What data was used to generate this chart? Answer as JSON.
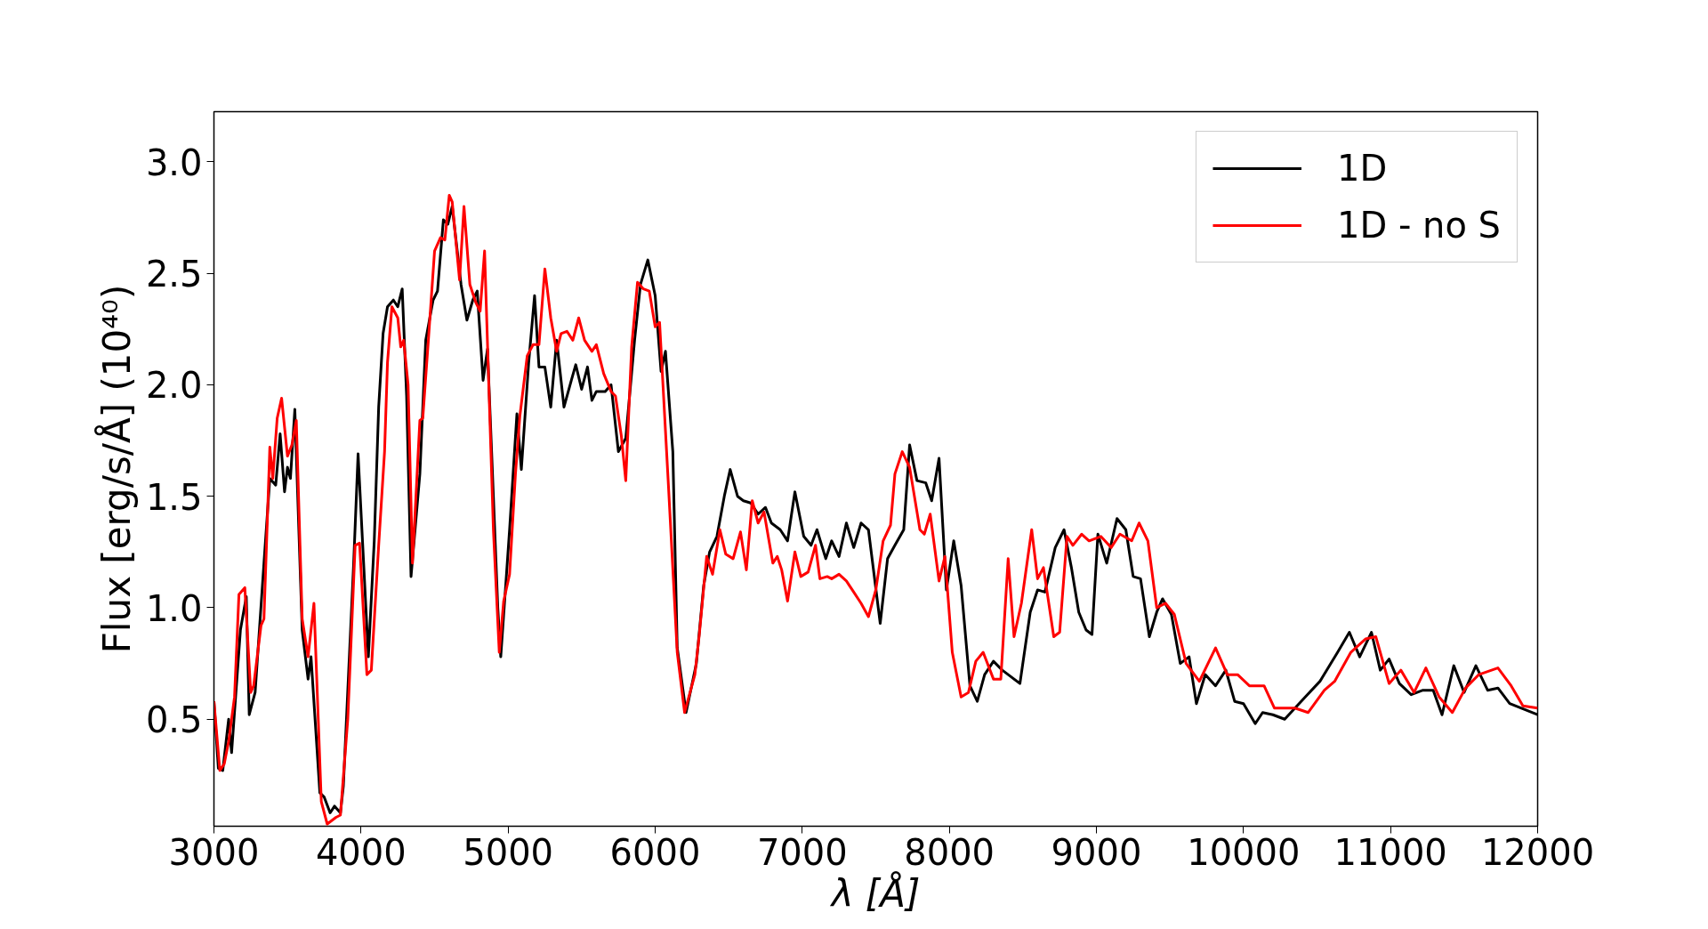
{
  "chart_data": {
    "type": "line",
    "xlabel": "λ [Å]",
    "ylabel": "Flux [erg/s/Å] (10⁴⁰)",
    "xlim": [
      3000,
      12000
    ],
    "ylim": [
      0.02,
      3.225
    ],
    "xticks": [
      3000,
      4000,
      5000,
      6000,
      7000,
      8000,
      9000,
      10000,
      11000,
      12000
    ],
    "yticks": [
      {
        "value": 0.5,
        "label": "0.5"
      },
      {
        "value": 1,
        "label": "1.0"
      },
      {
        "value": 1.5,
        "label": "1.5"
      },
      {
        "value": 2,
        "label": "2.0"
      },
      {
        "value": 2.5,
        "label": "2.5"
      },
      {
        "value": 3,
        "label": "3.0"
      }
    ],
    "grid": false,
    "legend": "top right",
    "marker": "none",
    "line_style": "solid",
    "series": [
      {
        "name": "1D",
        "color": "#000000",
        "x": [
          3000,
          3030,
          3060,
          3100,
          3120,
          3180,
          3220,
          3240,
          3280,
          3340,
          3380,
          3420,
          3450,
          3480,
          3500,
          3520,
          3550,
          3600,
          3640,
          3660,
          3720,
          3750,
          3790,
          3820,
          3860,
          3880,
          3950,
          3980,
          4010,
          4050,
          4090,
          4120,
          4150,
          4180,
          4220,
          4250,
          4280,
          4310,
          4340,
          4400,
          4440,
          4490,
          4520,
          4560,
          4590,
          4620,
          4680,
          4720,
          4760,
          4790,
          4830,
          4860,
          4900,
          4930,
          4950,
          5010,
          5060,
          5090,
          5140,
          5180,
          5210,
          5250,
          5290,
          5330,
          5380,
          5430,
          5460,
          5500,
          5540,
          5570,
          5600,
          5660,
          5700,
          5750,
          5800,
          5860,
          5900,
          5950,
          6000,
          6040,
          6070,
          6120,
          6150,
          6210,
          6280,
          6330,
          6370,
          6420,
          6470,
          6510,
          6560,
          6600,
          6650,
          6700,
          6750,
          6790,
          6850,
          6900,
          6950,
          7010,
          7060,
          7100,
          7160,
          7200,
          7250,
          7300,
          7350,
          7400,
          7450,
          7530,
          7580,
          7630,
          7690,
          7730,
          7780,
          7840,
          7880,
          7930,
          7980,
          8030,
          8080,
          8140,
          8190,
          8240,
          8300,
          8360,
          8420,
          8480,
          8550,
          8600,
          8650,
          8720,
          8780,
          8830,
          8880,
          8930,
          8970,
          9010,
          9070,
          9140,
          9200,
          9250,
          9300,
          9360,
          9410,
          9450,
          9510,
          9570,
          9630,
          9680,
          9740,
          9810,
          9880,
          9940,
          10000,
          10080,
          10130,
          10200,
          10280,
          10350,
          10420,
          10520,
          10640,
          10720,
          10790,
          10870,
          10930,
          10990,
          11060,
          11140,
          11220,
          11290,
          11350,
          11430,
          11500,
          11580,
          11660,
          11730,
          11810,
          12000
        ],
        "values": [
          0.58,
          0.28,
          0.27,
          0.5,
          0.35,
          0.9,
          1.05,
          0.52,
          0.62,
          1.2,
          1.58,
          1.55,
          1.78,
          1.52,
          1.63,
          1.58,
          1.89,
          0.9,
          0.68,
          0.78,
          0.17,
          0.15,
          0.08,
          0.11,
          0.08,
          0.2,
          1.2,
          1.69,
          1.3,
          0.78,
          1.3,
          1.9,
          2.23,
          2.35,
          2.38,
          2.35,
          2.43,
          1.95,
          1.14,
          1.6,
          2.2,
          2.38,
          2.42,
          2.74,
          2.72,
          2.8,
          2.45,
          2.29,
          2.38,
          2.42,
          2.02,
          2.16,
          1.5,
          1.0,
          0.78,
          1.35,
          1.87,
          1.62,
          2.1,
          2.4,
          2.08,
          2.08,
          1.9,
          2.2,
          1.9,
          2.02,
          2.09,
          1.98,
          2.08,
          1.93,
          1.97,
          1.97,
          2.0,
          1.7,
          1.76,
          2.2,
          2.45,
          2.56,
          2.4,
          2.06,
          2.15,
          1.7,
          0.82,
          0.53,
          0.75,
          1.1,
          1.25,
          1.32,
          1.5,
          1.62,
          1.5,
          1.48,
          1.47,
          1.42,
          1.45,
          1.38,
          1.35,
          1.3,
          1.52,
          1.32,
          1.28,
          1.35,
          1.22,
          1.3,
          1.23,
          1.38,
          1.27,
          1.38,
          1.35,
          0.93,
          1.22,
          1.28,
          1.35,
          1.73,
          1.57,
          1.56,
          1.48,
          1.67,
          1.08,
          1.3,
          1.1,
          0.65,
          0.58,
          0.7,
          0.76,
          0.72,
          0.69,
          0.66,
          0.98,
          1.08,
          1.07,
          1.27,
          1.35,
          1.18,
          0.98,
          0.9,
          0.88,
          1.33,
          1.2,
          1.4,
          1.35,
          1.14,
          1.13,
          0.87,
          0.98,
          1.04,
          0.97,
          0.75,
          0.78,
          0.57,
          0.7,
          0.65,
          0.72,
          0.58,
          0.57,
          0.48,
          0.53,
          0.52,
          0.5,
          0.55,
          0.6,
          0.67,
          0.8,
          0.89,
          0.78,
          0.89,
          0.72,
          0.77,
          0.66,
          0.61,
          0.63,
          0.63,
          0.52,
          0.74,
          0.62,
          0.74,
          0.63,
          0.64,
          0.57,
          0.52
        ]
      },
      {
        "name": "1D - no S",
        "color": "#ff0000",
        "x": [
          3000,
          3040,
          3070,
          3100,
          3140,
          3170,
          3210,
          3250,
          3270,
          3320,
          3340,
          3380,
          3400,
          3430,
          3460,
          3500,
          3530,
          3560,
          3600,
          3640,
          3680,
          3730,
          3770,
          3830,
          3860,
          3910,
          3960,
          3990,
          4040,
          4070,
          4120,
          4160,
          4180,
          4210,
          4250,
          4270,
          4290,
          4320,
          4350,
          4400,
          4420,
          4460,
          4500,
          4540,
          4570,
          4600,
          4620,
          4670,
          4700,
          4740,
          4780,
          4810,
          4840,
          4900,
          4940,
          4970,
          5010,
          5050,
          5080,
          5130,
          5170,
          5210,
          5250,
          5290,
          5330,
          5360,
          5400,
          5440,
          5480,
          5520,
          5570,
          5600,
          5650,
          5700,
          5730,
          5770,
          5800,
          5840,
          5880,
          5920,
          5960,
          6000,
          6030,
          6090,
          6150,
          6200,
          6270,
          6300,
          6350,
          6390,
          6440,
          6480,
          6530,
          6580,
          6620,
          6660,
          6700,
          6740,
          6800,
          6830,
          6860,
          6900,
          6950,
          6990,
          7040,
          7090,
          7120,
          7170,
          7200,
          7250,
          7300,
          7350,
          7400,
          7450,
          7500,
          7550,
          7600,
          7630,
          7680,
          7730,
          7800,
          7830,
          7870,
          7930,
          7970,
          8020,
          8080,
          8130,
          8180,
          8230,
          8300,
          8350,
          8400,
          8440,
          8490,
          8560,
          8600,
          8640,
          8710,
          8750,
          8800,
          8840,
          8900,
          8950,
          9030,
          9100,
          9160,
          9240,
          9290,
          9350,
          9410,
          9470,
          9530,
          9610,
          9700,
          9810,
          9890,
          9960,
          10040,
          10140,
          10210,
          10350,
          10440,
          10550,
          10620,
          10730,
          10830,
          10900,
          10990,
          11070,
          11160,
          11240,
          11330,
          11420,
          11510,
          11600,
          11730,
          11820,
          11900,
          12000
        ],
        "values": [
          0.58,
          0.27,
          0.3,
          0.4,
          0.6,
          1.06,
          1.09,
          0.62,
          0.65,
          0.92,
          0.95,
          1.72,
          1.58,
          1.85,
          1.94,
          1.68,
          1.73,
          1.84,
          0.95,
          0.78,
          1.02,
          0.13,
          0.03,
          0.06,
          0.07,
          0.5,
          1.28,
          1.29,
          0.7,
          0.72,
          1.28,
          1.7,
          2.1,
          2.35,
          2.3,
          2.17,
          2.2,
          2.0,
          1.2,
          1.84,
          1.85,
          2.22,
          2.6,
          2.66,
          2.65,
          2.85,
          2.82,
          2.47,
          2.8,
          2.45,
          2.37,
          2.33,
          2.6,
          1.35,
          0.8,
          1.03,
          1.15,
          1.6,
          1.86,
          2.13,
          2.18,
          2.18,
          2.52,
          2.3,
          2.15,
          2.23,
          2.24,
          2.2,
          2.3,
          2.2,
          2.15,
          2.18,
          2.05,
          1.97,
          1.95,
          1.77,
          1.57,
          2.17,
          2.46,
          2.43,
          2.42,
          2.26,
          2.28,
          1.55,
          0.8,
          0.53,
          0.7,
          0.88,
          1.23,
          1.15,
          1.35,
          1.24,
          1.22,
          1.34,
          1.17,
          1.48,
          1.38,
          1.43,
          1.2,
          1.23,
          1.17,
          1.03,
          1.25,
          1.14,
          1.16,
          1.28,
          1.13,
          1.14,
          1.13,
          1.15,
          1.12,
          1.07,
          1.02,
          0.96,
          1.08,
          1.3,
          1.37,
          1.6,
          1.7,
          1.63,
          1.35,
          1.33,
          1.42,
          1.12,
          1.23,
          0.8,
          0.6,
          0.62,
          0.76,
          0.8,
          0.68,
          0.68,
          1.22,
          0.87,
          1.02,
          1.35,
          1.13,
          1.18,
          0.87,
          0.89,
          1.32,
          1.28,
          1.33,
          1.3,
          1.32,
          1.27,
          1.33,
          1.3,
          1.38,
          1.3,
          1.0,
          1.02,
          0.97,
          0.75,
          0.67,
          0.82,
          0.7,
          0.7,
          0.65,
          0.65,
          0.55,
          0.55,
          0.53,
          0.63,
          0.67,
          0.8,
          0.86,
          0.87,
          0.66,
          0.72,
          0.62,
          0.73,
          0.6,
          0.53,
          0.64,
          0.7,
          0.73,
          0.65,
          0.56,
          0.55
        ]
      }
    ]
  }
}
